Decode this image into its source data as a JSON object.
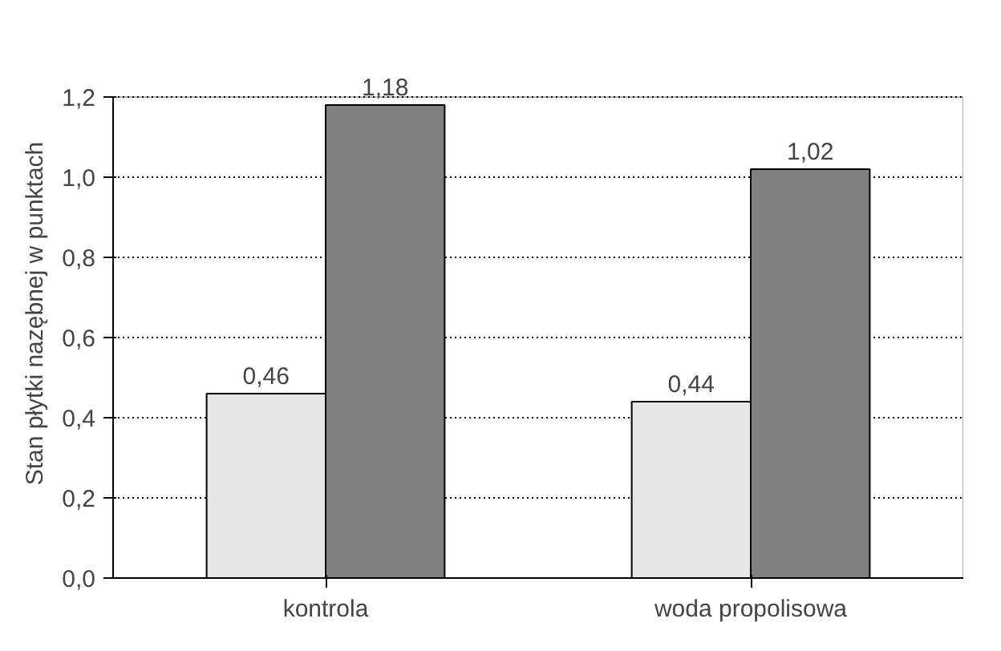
{
  "chart_data": {
    "type": "bar",
    "ylabel": "Stan płytki nazębnej w punktach",
    "categories": [
      "kontrola",
      "woda propolisowa"
    ],
    "series": [
      {
        "color": "#e6e6e6",
        "values": [
          0.46,
          0.44
        ],
        "value_labels": [
          "0,46",
          "0,44"
        ]
      },
      {
        "color": "#808080",
        "values": [
          1.18,
          1.02
        ],
        "value_labels": [
          "1,18",
          "1,02"
        ]
      }
    ],
    "ylim": [
      0,
      1.2
    ],
    "yticks": [
      {
        "value": 0,
        "label": "0,0"
      },
      {
        "value": 0.2,
        "label": "0,2"
      },
      {
        "value": 0.4,
        "label": "0,4"
      },
      {
        "value": 0.6,
        "label": "0,6"
      },
      {
        "value": 0.8,
        "label": "0,8"
      },
      {
        "value": 1.0,
        "label": "1,0"
      },
      {
        "value": 1.2,
        "label": "1,2"
      }
    ],
    "grid": "y"
  }
}
